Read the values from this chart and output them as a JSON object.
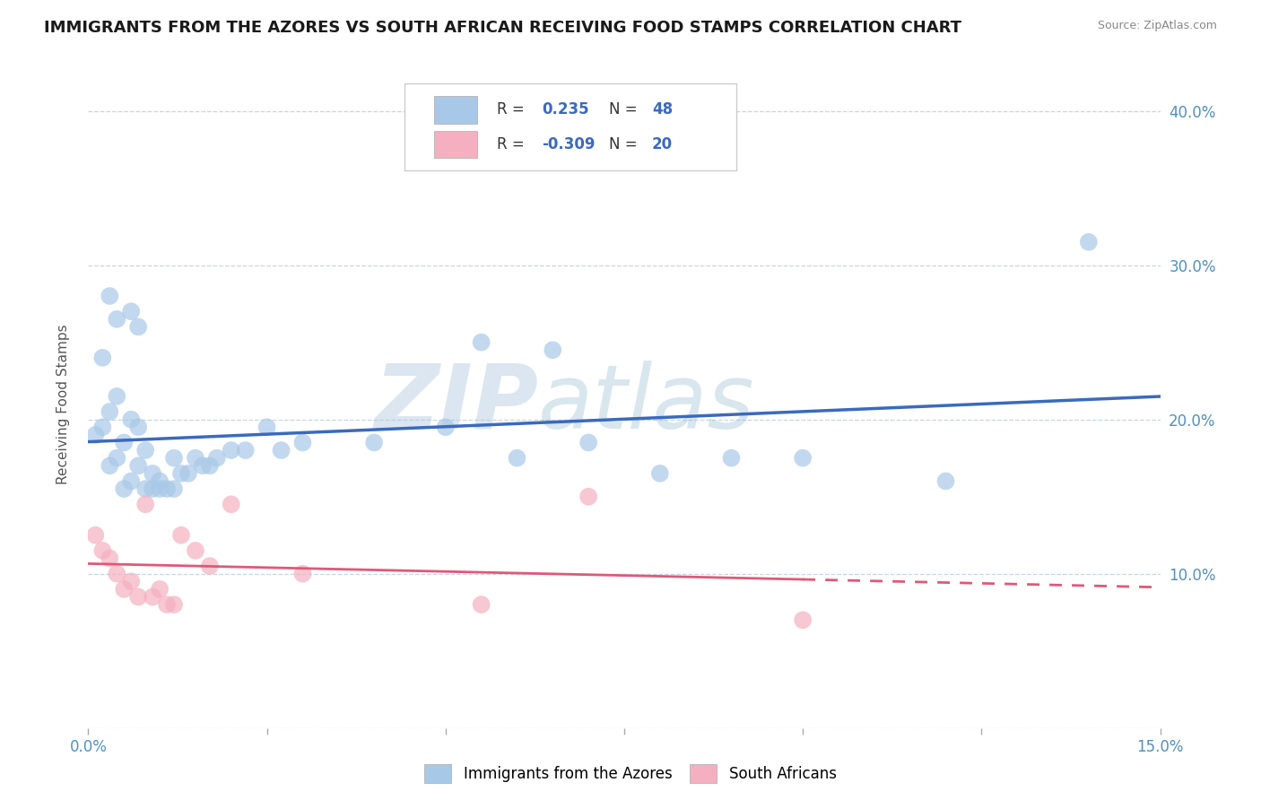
{
  "title": "IMMIGRANTS FROM THE AZORES VS SOUTH AFRICAN RECEIVING FOOD STAMPS CORRELATION CHART",
  "source": "Source: ZipAtlas.com",
  "ylabel": "Receiving Food Stamps",
  "xlim": [
    0.0,
    0.15
  ],
  "ylim": [
    0.0,
    0.42
  ],
  "blue_color": "#a8c8e8",
  "pink_color": "#f4b0c0",
  "blue_line_color": "#3a6abf",
  "pink_line_color": "#e05878",
  "watermark": "ZIPatlas",
  "watermark_color_zip": "#b0c8e0",
  "watermark_color_atlas": "#90b8d0",
  "legend_label1": "Immigrants from the Azores",
  "legend_label2": "South Africans",
  "blue_x": [
    0.001,
    0.002,
    0.002,
    0.003,
    0.003,
    0.003,
    0.004,
    0.004,
    0.004,
    0.005,
    0.005,
    0.006,
    0.006,
    0.006,
    0.007,
    0.007,
    0.007,
    0.008,
    0.008,
    0.009,
    0.009,
    0.01,
    0.01,
    0.011,
    0.012,
    0.012,
    0.013,
    0.014,
    0.015,
    0.016,
    0.017,
    0.018,
    0.02,
    0.022,
    0.025,
    0.027,
    0.03,
    0.04,
    0.05,
    0.055,
    0.06,
    0.065,
    0.07,
    0.08,
    0.09,
    0.1,
    0.12,
    0.14
  ],
  "blue_y": [
    0.19,
    0.195,
    0.24,
    0.17,
    0.205,
    0.28,
    0.175,
    0.215,
    0.265,
    0.155,
    0.185,
    0.16,
    0.2,
    0.27,
    0.17,
    0.195,
    0.26,
    0.155,
    0.18,
    0.155,
    0.165,
    0.155,
    0.16,
    0.155,
    0.155,
    0.175,
    0.165,
    0.165,
    0.175,
    0.17,
    0.17,
    0.175,
    0.18,
    0.18,
    0.195,
    0.18,
    0.185,
    0.185,
    0.195,
    0.25,
    0.175,
    0.245,
    0.185,
    0.165,
    0.175,
    0.175,
    0.16,
    0.315
  ],
  "pink_x": [
    0.001,
    0.002,
    0.003,
    0.004,
    0.005,
    0.006,
    0.007,
    0.008,
    0.009,
    0.01,
    0.011,
    0.012,
    0.013,
    0.015,
    0.017,
    0.02,
    0.03,
    0.055,
    0.07,
    0.1
  ],
  "pink_y": [
    0.125,
    0.115,
    0.11,
    0.1,
    0.09,
    0.095,
    0.085,
    0.145,
    0.085,
    0.09,
    0.08,
    0.08,
    0.125,
    0.115,
    0.105,
    0.145,
    0.1,
    0.08,
    0.15,
    0.07
  ]
}
